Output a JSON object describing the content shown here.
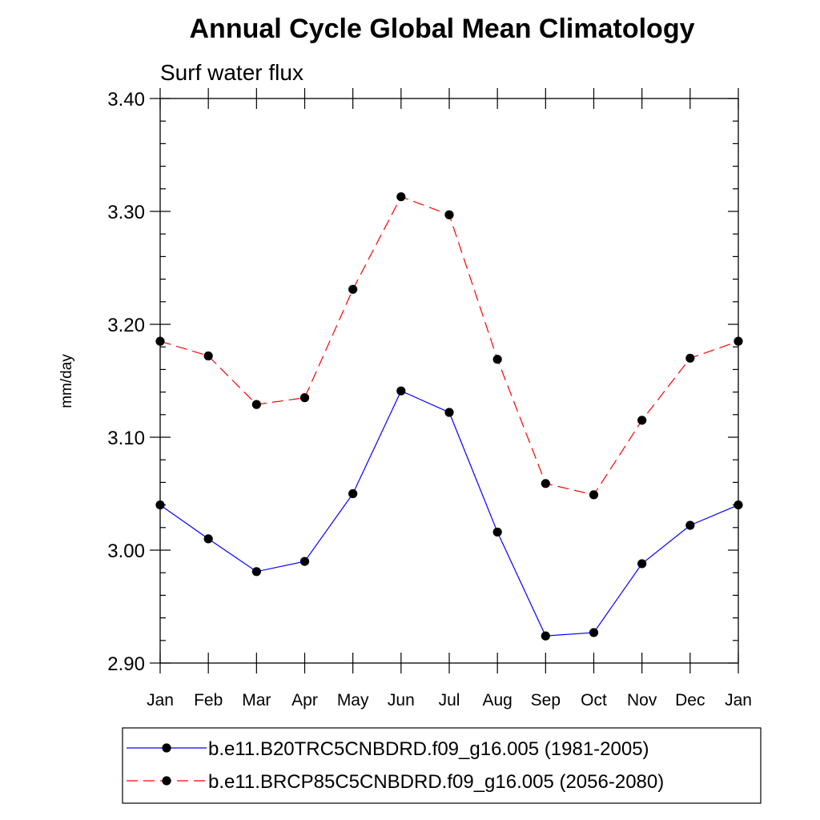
{
  "chart_data": {
    "type": "line",
    "title": "Annual Cycle Global Mean Climatology",
    "subtitle": "Surf water flux",
    "xlabel": "",
    "ylabel": "mm/day",
    "ylim": [
      2.9,
      3.4
    ],
    "yticks": [
      "3.40",
      "3.30",
      "3.20",
      "3.10",
      "3.00",
      "2.90"
    ],
    "ytick_values": [
      3.4,
      3.3,
      3.2,
      3.1,
      3.0,
      2.9
    ],
    "categories": [
      "Jan",
      "Feb",
      "Mar",
      "Apr",
      "May",
      "Jun",
      "Jul",
      "Aug",
      "Sep",
      "Oct",
      "Nov",
      "Dec",
      "Jan"
    ],
    "grid": false,
    "legend_position": "bottom",
    "series": [
      {
        "name": "b.e11.B20TRC5CNBDRD.f09_g16.005 (1981-2005)",
        "color": "#0000ff",
        "dash": "solid",
        "values": [
          3.04,
          3.01,
          2.981,
          2.99,
          3.05,
          3.141,
          3.122,
          3.016,
          2.924,
          2.927,
          2.988,
          3.022,
          3.04
        ]
      },
      {
        "name": "b.e11.BRCP85C5CNBDRD.f09_g16.005 (2056-2080)",
        "color": "#ff0000",
        "dash": "dashed",
        "values": [
          3.185,
          3.172,
          3.129,
          3.135,
          3.231,
          3.313,
          3.297,
          3.169,
          3.059,
          3.049,
          3.115,
          3.17,
          3.185
        ]
      }
    ]
  }
}
